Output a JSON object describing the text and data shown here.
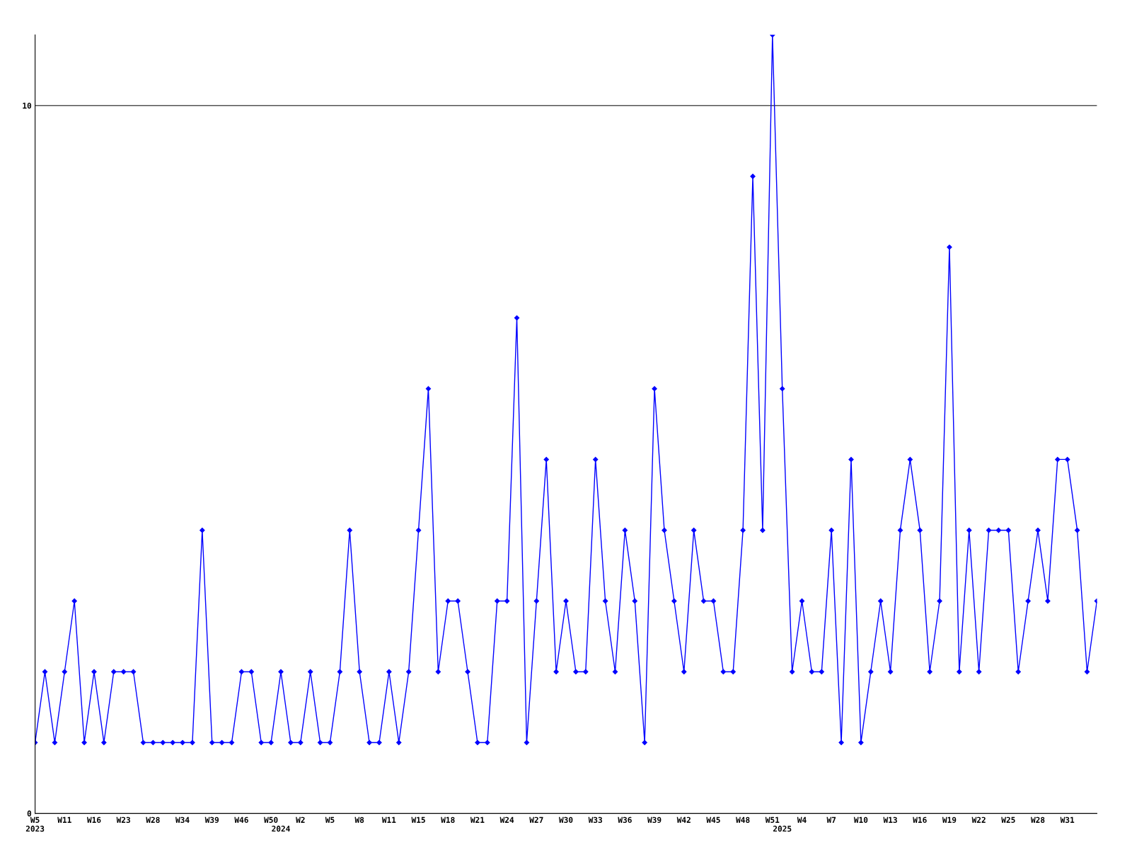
{
  "chart_data": {
    "type": "line",
    "categories": [
      "W5\n2023",
      null,
      null,
      "W11",
      null,
      null,
      "W16",
      null,
      null,
      "W23",
      null,
      null,
      "W28",
      null,
      null,
      "W34",
      null,
      null,
      "W39",
      null,
      null,
      "W46",
      null,
      null,
      "W50",
      "\n2024",
      null,
      "W2",
      null,
      null,
      "W5",
      null,
      null,
      "W8",
      null,
      null,
      "W11",
      null,
      null,
      "W15",
      null,
      null,
      "W18",
      null,
      null,
      "W21",
      null,
      null,
      "W24",
      null,
      null,
      "W27",
      null,
      null,
      "W30",
      null,
      null,
      "W33",
      null,
      null,
      "W36",
      null,
      null,
      "W39",
      null,
      null,
      "W42",
      null,
      null,
      "W45",
      null,
      null,
      "W48",
      null,
      null,
      "W51",
      "\n2025",
      null,
      "W4",
      null,
      null,
      "W7",
      null,
      null,
      "W10",
      null,
      null,
      "W13",
      null,
      null,
      "W16",
      null,
      null,
      "W19",
      null,
      null,
      "W22",
      null,
      null,
      "W25",
      null,
      null,
      "W28",
      null,
      null,
      "W31",
      null,
      null,
      null
    ],
    "series": [
      {
        "color": "#0000ff",
        "values": [
          1,
          2,
          1,
          2,
          3,
          1,
          2,
          1,
          2,
          2,
          2,
          1,
          1,
          1,
          1,
          1,
          1,
          4,
          1,
          1,
          1,
          2,
          2,
          1,
          1,
          2,
          1,
          1,
          2,
          1,
          1,
          2,
          4,
          2,
          1,
          1,
          2,
          1,
          2,
          4,
          6,
          2,
          3,
          3,
          2,
          1,
          1,
          3,
          3,
          7,
          1,
          3,
          5,
          2,
          3,
          2,
          2,
          5,
          3,
          2,
          4,
          3,
          1,
          6,
          4,
          3,
          2,
          4,
          3,
          3,
          2,
          2,
          4,
          9,
          4,
          11,
          6,
          2,
          3,
          2,
          2,
          4,
          1,
          5,
          1,
          2,
          3,
          2,
          4,
          5,
          4,
          2,
          3,
          8,
          2,
          4,
          2,
          4,
          4,
          4,
          2,
          3,
          4,
          3,
          5,
          5,
          4,
          2,
          3
        ]
      }
    ],
    "ylim": [
      0,
      11
    ],
    "yticks": [
      0,
      10
    ],
    "grid": "y",
    "marker": "diamond",
    "line_style": "solid"
  }
}
